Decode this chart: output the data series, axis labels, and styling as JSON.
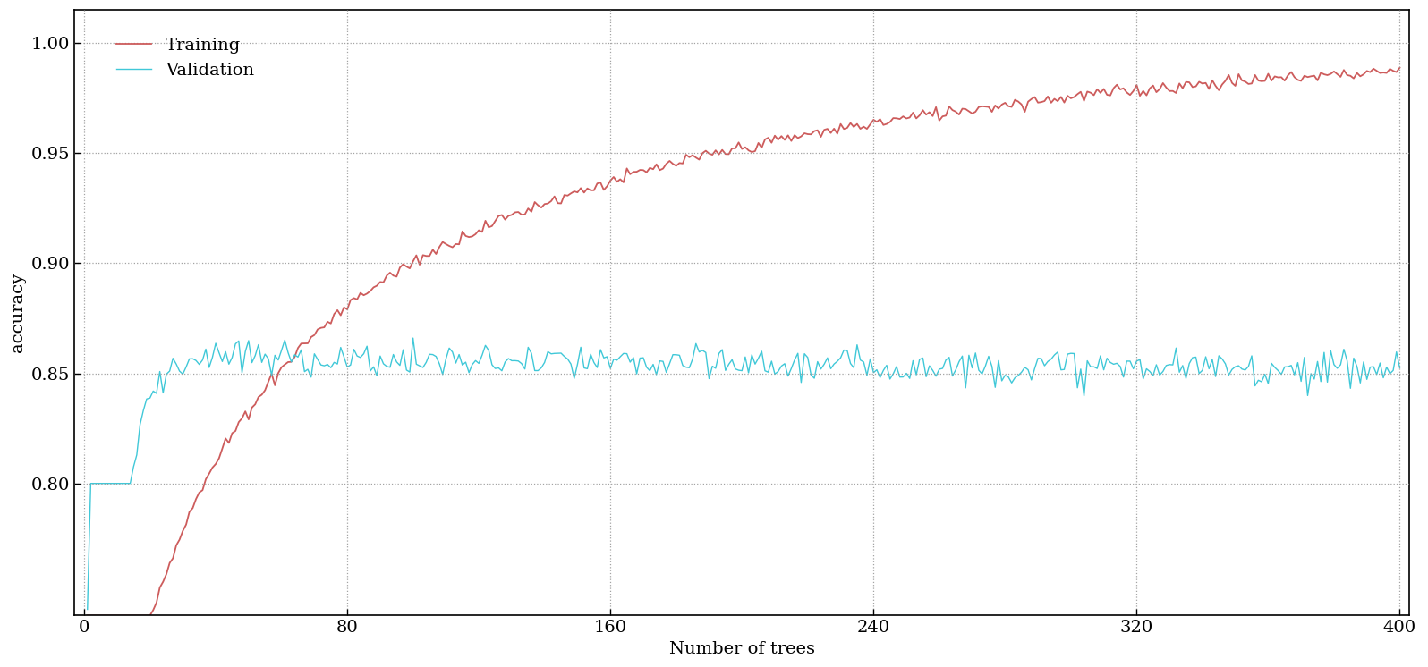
{
  "n_trees": 400,
  "x_ticks": [
    0,
    80,
    160,
    240,
    320,
    400
  ],
  "ylim": [
    0.74,
    1.015
  ],
  "yticks": [
    0.8,
    0.85,
    0.9,
    0.95,
    1.0
  ],
  "xlabel": "Number of trees",
  "ylabel": "accuracy",
  "training_color": "#cd5c5c",
  "validation_color": "#40c8d8",
  "background_color": "#ffffff",
  "legend_labels": [
    "Training",
    "Validation"
  ],
  "grid_color": "#999999",
  "label_fontsize": 14,
  "tick_fontsize": 14,
  "legend_fontsize": 14,
  "train_noise_scale": 0.0015,
  "val_noise_scale": 0.004,
  "xlim_left": -3,
  "xlim_right": 403
}
